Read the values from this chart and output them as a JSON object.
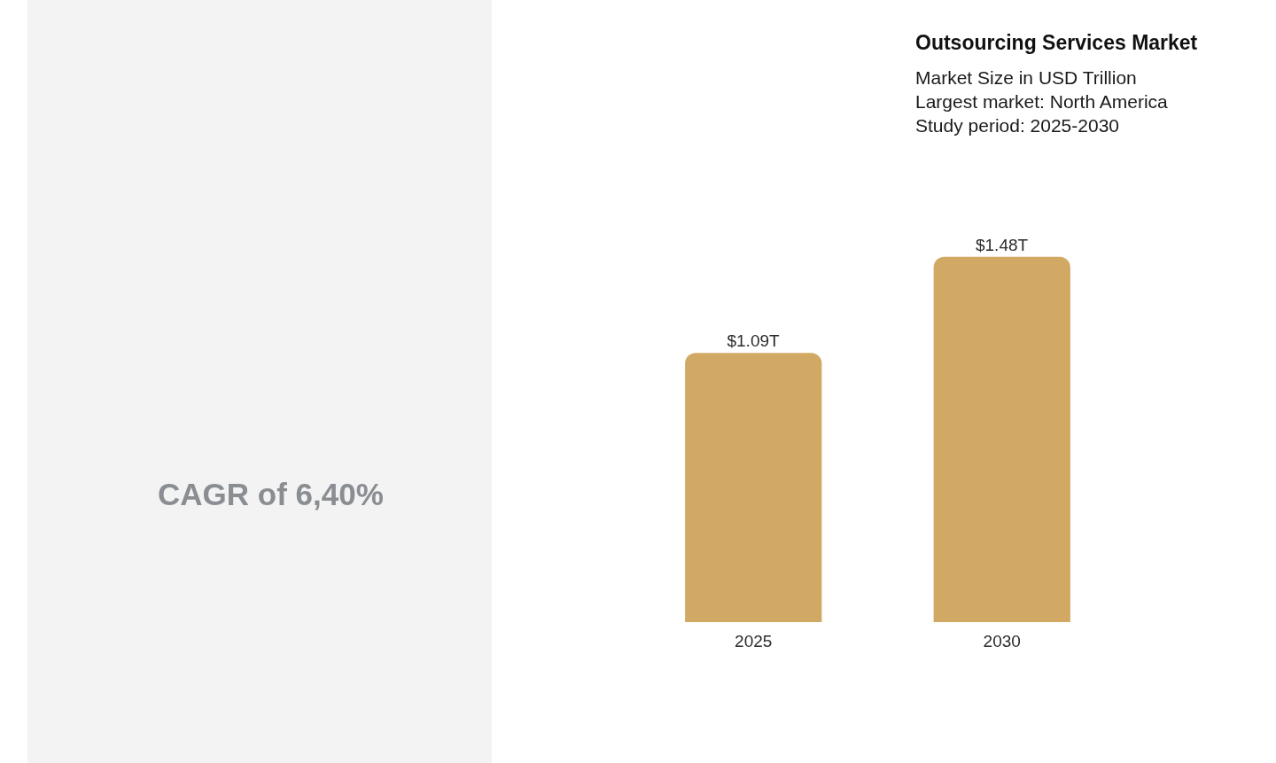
{
  "chart_data": {
    "type": "bar",
    "title": "Outsourcing Services Market",
    "subtitle": "Market Size in USD Trillion\nLargest market: North America\nStudy period: 2025-2030",
    "categories": [
      "2025",
      "2030"
    ],
    "values": [
      1.09,
      1.48
    ],
    "value_labels": [
      "$1.09T",
      "$1.48T"
    ],
    "color": "#d2a964",
    "annotations": [
      "CAGR of 6,40%"
    ]
  }
}
